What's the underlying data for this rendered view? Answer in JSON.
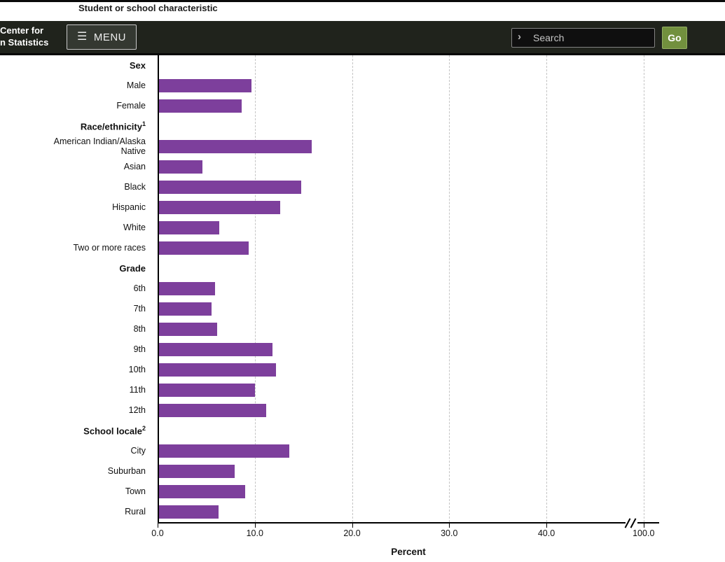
{
  "page": {
    "top_column_title": "Student or school characteristic"
  },
  "header": {
    "logo_line1": "Center for",
    "logo_line2": "n Statistics",
    "menu_label": "MENU",
    "search_placeholder": "Search",
    "go_label": "Go"
  },
  "chart_data": {
    "type": "bar",
    "orientation": "horizontal",
    "xlabel": "Percent",
    "x_ticks": [
      "0.0",
      "10.0",
      "20.0",
      "30.0",
      "40.0",
      "100.0"
    ],
    "axis_break_before_last_tick": true,
    "xlim_displayed": [
      0,
      40
    ],
    "grid": "dashed-vertical",
    "bar_color": "#7d3f9c",
    "rows": [
      {
        "type": "header",
        "label": "Sex"
      },
      {
        "type": "bar",
        "label": "Male",
        "value": 9.5
      },
      {
        "type": "bar",
        "label": "Female",
        "value": 8.5
      },
      {
        "type": "header",
        "label": "Race/ethnicity",
        "sup": "1"
      },
      {
        "type": "bar",
        "label": "American Indian/Alaska Native",
        "value": 15.7,
        "wrap": true
      },
      {
        "type": "bar",
        "label": "Asian",
        "value": 4.5
      },
      {
        "type": "bar",
        "label": "Black",
        "value": 14.6
      },
      {
        "type": "bar",
        "label": "Hispanic",
        "value": 12.5
      },
      {
        "type": "bar",
        "label": "White",
        "value": 6.2
      },
      {
        "type": "bar",
        "label": "Two or more races",
        "value": 9.2
      },
      {
        "type": "header",
        "label": "Grade"
      },
      {
        "type": "bar",
        "label": "6th",
        "value": 5.8
      },
      {
        "type": "bar",
        "label": "7th",
        "value": 5.4
      },
      {
        "type": "bar",
        "label": "8th",
        "value": 6.0
      },
      {
        "type": "bar",
        "label": "9th",
        "value": 11.7
      },
      {
        "type": "bar",
        "label": "10th",
        "value": 12.0
      },
      {
        "type": "bar",
        "label": "11th",
        "value": 9.9
      },
      {
        "type": "bar",
        "label": "12th",
        "value": 11.0
      },
      {
        "type": "header",
        "label": "School locale",
        "sup": "2"
      },
      {
        "type": "bar",
        "label": "City",
        "value": 13.4
      },
      {
        "type": "bar",
        "label": "Suburban",
        "value": 7.8
      },
      {
        "type": "bar",
        "label": "Town",
        "value": 8.9
      },
      {
        "type": "bar",
        "label": "Rural",
        "value": 6.1
      }
    ]
  }
}
